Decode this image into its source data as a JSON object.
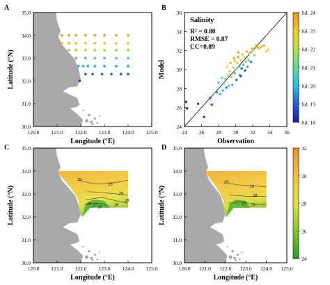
{
  "figure": {
    "colors": {
      "land": "#a9a9a9",
      "frame": "#000000",
      "one_to_one": "#000000"
    }
  },
  "chart_data": [
    {
      "type": "scatter",
      "panel": "A",
      "xlabel": "Longitude (°E)",
      "ylabel": "Latitude (°N)",
      "xlim": [
        120.0,
        125.0
      ],
      "ylim": [
        30.0,
        35.0
      ],
      "xticks": [
        "120.0",
        "121.0",
        "122.0",
        "123.0",
        "124.0",
        "125.0"
      ],
      "yticks": [
        "30.0",
        "31.0",
        "32.0",
        "33.0",
        "34.0",
        "35.0"
      ],
      "rows": [
        {
          "lat": 34.0,
          "lons": [
            121.2,
            121.5,
            121.8,
            122.2,
            122.6,
            123.0,
            123.5,
            124.0
          ],
          "color": "#f0a020"
        },
        {
          "lat": 33.65,
          "lons": [
            121.2,
            121.5,
            121.8,
            122.2,
            122.6,
            123.0,
            123.5,
            124.0
          ],
          "color": "#e8c81e"
        },
        {
          "lat": 33.35,
          "lons": [
            121.5,
            121.8,
            122.2,
            122.6,
            123.0,
            123.5,
            124.0
          ],
          "color": "#a8d838"
        },
        {
          "lat": 33.0,
          "lons": [
            121.8,
            122.2,
            122.6,
            123.0,
            123.5,
            124.0
          ],
          "color": "#50c8a0"
        },
        {
          "lat": 32.65,
          "lons": [
            121.9,
            122.1,
            122.3,
            122.6,
            123.0,
            123.5,
            124.0
          ],
          "color": "#20b4d8"
        },
        {
          "lat": 32.3,
          "lons": [
            122.2,
            122.5,
            122.9,
            123.3,
            123.7,
            124.0
          ],
          "color": "#2860d0"
        },
        {
          "lat": 32.0,
          "lons": [
            121.95
          ],
          "color": "#2840c0"
        }
      ]
    },
    {
      "type": "scatter",
      "panel": "B",
      "title": "Salinity",
      "stats": [
        "R² = 0.80",
        "RMSE = 0.87",
        "CC=0.89"
      ],
      "xlabel": "Observation",
      "ylabel": "Model",
      "xlim": [
        24,
        36
      ],
      "ylim": [
        24,
        36
      ],
      "xticks": [
        "24",
        "26",
        "28",
        "30",
        "32",
        "34",
        "36"
      ],
      "yticks": [
        "24",
        "26",
        "28",
        "30",
        "32",
        "34",
        "36"
      ],
      "colorbar_ticks": [
        "Jul. 24",
        "Jul. 23",
        "Jul. 22",
        "Jul. 21",
        "Jul. 20",
        "Jul. 19",
        "Jul. 18"
      ],
      "points": [
        [
          24.2,
          26.6,
          18.2
        ],
        [
          24.3,
          25.9,
          18.3
        ],
        [
          25.6,
          26.4,
          18.6
        ],
        [
          26.3,
          25.0,
          18.4
        ],
        [
          27.0,
          27.0,
          18.8
        ],
        [
          27.2,
          26.3,
          19.0
        ],
        [
          27.8,
          27.6,
          19.6
        ],
        [
          28.0,
          28.6,
          20.3
        ],
        [
          28.2,
          27.4,
          20.6
        ],
        [
          28.4,
          29.1,
          21.0
        ],
        [
          28.5,
          27.8,
          20.2
        ],
        [
          28.6,
          28.5,
          21.3
        ],
        [
          28.8,
          29.0,
          21.5
        ],
        [
          28.9,
          28.1,
          19.4
        ],
        [
          29.0,
          30.3,
          22.6
        ],
        [
          29.1,
          29.4,
          22.0
        ],
        [
          29.2,
          28.3,
          20.9
        ],
        [
          29.3,
          29.8,
          23.2
        ],
        [
          29.4,
          30.7,
          23.4
        ],
        [
          29.5,
          29.2,
          21.7
        ],
        [
          29.6,
          28.4,
          19.8
        ],
        [
          29.7,
          30.2,
          22.3
        ],
        [
          29.8,
          31.2,
          23.6
        ],
        [
          29.9,
          29.6,
          20.6
        ],
        [
          30.0,
          30.0,
          21.1
        ],
        [
          30.1,
          28.9,
          19.2
        ],
        [
          30.2,
          30.7,
          22.8
        ],
        [
          30.3,
          31.3,
          23.8
        ],
        [
          30.4,
          30.3,
          20.0
        ],
        [
          30.5,
          29.4,
          19.5
        ],
        [
          30.6,
          31.0,
          21.9
        ],
        [
          30.7,
          30.1,
          19.1
        ],
        [
          30.8,
          31.6,
          23.0
        ],
        [
          30.9,
          30.5,
          20.4
        ],
        [
          31.0,
          31.3,
          22.4
        ],
        [
          31.1,
          29.9,
          18.9
        ],
        [
          31.2,
          30.8,
          21.2
        ],
        [
          31.3,
          31.9,
          23.5
        ],
        [
          31.4,
          30.3,
          19.7
        ],
        [
          31.5,
          31.0,
          20.8
        ],
        [
          31.6,
          31.7,
          22.1
        ],
        [
          31.8,
          30.8,
          19.3
        ],
        [
          32.0,
          32.0,
          23.1
        ],
        [
          32.2,
          31.5,
          21.4
        ],
        [
          32.4,
          32.6,
          22.9
        ],
        [
          32.6,
          32.3,
          23.7
        ],
        [
          32.8,
          32.2,
          22.6
        ],
        [
          33.0,
          32.4,
          23.3
        ],
        [
          33.3,
          32.5,
          23.9
        ],
        [
          33.6,
          31.9,
          22.5
        ],
        [
          33.8,
          32.1,
          23.0
        ],
        [
          30.3,
          31.8,
          23.9
        ],
        [
          29.9,
          30.9,
          22.7
        ],
        [
          31.9,
          32.2,
          23.4
        ],
        [
          30.6,
          29.3,
          18.7
        ]
      ]
    },
    {
      "type": "heatmap",
      "panel": "C",
      "xlabel": "Longitude (°E)",
      "ylabel": "Latitude (°N)",
      "xticks": [
        "120.0",
        "121.0",
        "122.0",
        "123.0",
        "124.0",
        "125.0"
      ],
      "yticks": [
        "30.0",
        "31.0",
        "32.0",
        "33.0",
        "34.0",
        "35.0"
      ],
      "contour_labels": [
        "29",
        "29",
        "29",
        "28",
        "27",
        "26",
        "26",
        "28"
      ]
    },
    {
      "type": "heatmap",
      "panel": "D",
      "xlabel": "Longitude (°E)",
      "ylabel": "Latitude (°N)",
      "xticks": [
        "120.0",
        "121.0",
        "122.0",
        "123.0",
        "124.0",
        "125.0"
      ],
      "yticks": [
        "30.0",
        "31.0",
        "32.0",
        "33.0",
        "34.0",
        "35.0"
      ],
      "contour_labels": [
        "29",
        "29",
        "28",
        "27",
        "29"
      ],
      "colorbar_ticks": [
        "32",
        "30",
        "28",
        "26",
        "24"
      ]
    }
  ]
}
